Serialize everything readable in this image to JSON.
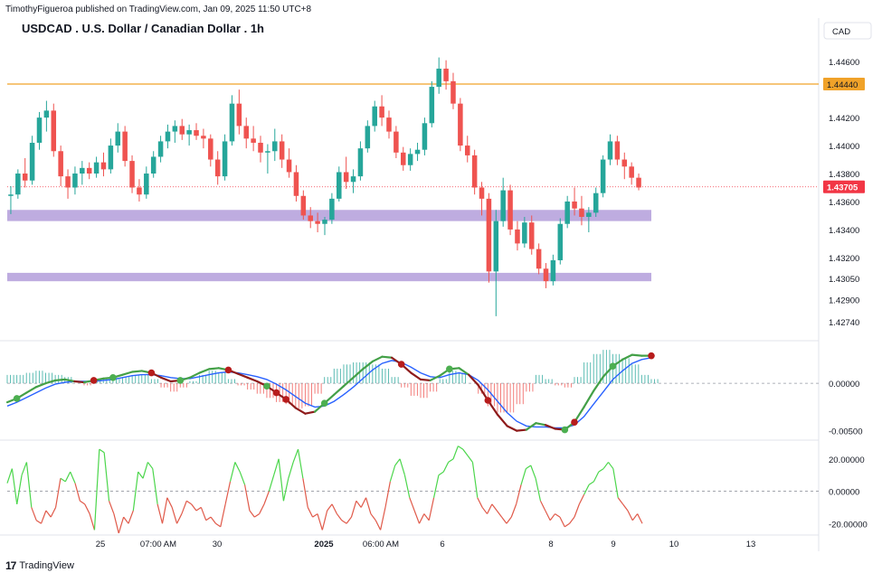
{
  "header": {
    "publisher_line": "TimothyFigueroa published on TradingView.com, Jan 09, 2025 11:50 UTC+8",
    "symbol_title": "USDCAD . U.S. Dollar / Canadian Dollar . 1h",
    "currency_label": "CAD"
  },
  "footer": {
    "logo_text": "TradingView",
    "logo_mark": "17"
  },
  "colors": {
    "up": "#26a69a",
    "down": "#ef5350",
    "up_wick": "#22ab94",
    "down_wick": "#d32f2f",
    "resistance": "#f0a229",
    "zone": "#b39ddb",
    "price_tag": "#f23645",
    "fast_line": "#43a047",
    "fast_line_down": "#8e1b1b",
    "slow_line": "#2962ff",
    "osc_up": "#4cd64c",
    "osc_down": "#e05a4a",
    "grid": "#e0e3eb",
    "axis_text": "#131722"
  },
  "chart_data": [
    {
      "type": "candlestick",
      "title": "USDCAD . U.S. Dollar / Canadian Dollar . 1h",
      "y_axis_ticks": [
        "1.44600",
        "1.44200",
        "1.44000",
        "1.43800",
        "1.43600",
        "1.43400",
        "1.43200",
        "1.43050",
        "1.42900",
        "1.42740"
      ],
      "ylim": [
        1.4265,
        1.4475
      ],
      "x_axis_labels": [
        "25",
        "07:00 AM",
        "30",
        "2025",
        "06:00 AM",
        "6",
        "8",
        "9",
        "10",
        "13"
      ],
      "resistance_level": 1.4444,
      "resistance_label": "1.44440",
      "last_price": 1.43705,
      "last_price_label": "1.43705",
      "support_zones": [
        {
          "from": 1.4346,
          "to": 1.4354
        },
        {
          "from": 1.4303,
          "to": 1.4309
        }
      ],
      "candles_ohlc": [
        [
          1.4364,
          1.4371,
          1.4351,
          1.4365
        ],
        [
          1.4365,
          1.4383,
          1.4362,
          1.438
        ],
        [
          1.438,
          1.4391,
          1.437,
          1.4375
        ],
        [
          1.4375,
          1.4407,
          1.4372,
          1.4402
        ],
        [
          1.4402,
          1.4424,
          1.4397,
          1.442
        ],
        [
          1.442,
          1.4432,
          1.441,
          1.4425
        ],
        [
          1.4425,
          1.443,
          1.4392,
          1.4396
        ],
        [
          1.4396,
          1.44,
          1.4371,
          1.4378
        ],
        [
          1.4378,
          1.4383,
          1.4362,
          1.437
        ],
        [
          1.437,
          1.4385,
          1.4365,
          1.438
        ],
        [
          1.438,
          1.4389,
          1.4372,
          1.4384
        ],
        [
          1.4384,
          1.4388,
          1.4376,
          1.438
        ],
        [
          1.438,
          1.4392,
          1.4377,
          1.4388
        ],
        [
          1.4388,
          1.4395,
          1.4378,
          1.4383
        ],
        [
          1.4383,
          1.4405,
          1.438,
          1.44
        ],
        [
          1.44,
          1.4416,
          1.4395,
          1.441
        ],
        [
          1.441,
          1.4414,
          1.4385,
          1.4389
        ],
        [
          1.4389,
          1.4393,
          1.4366,
          1.437
        ],
        [
          1.437,
          1.4376,
          1.436,
          1.4365
        ],
        [
          1.4365,
          1.4385,
          1.4362,
          1.438
        ],
        [
          1.438,
          1.4396,
          1.4377,
          1.4392
        ],
        [
          1.4392,
          1.4407,
          1.4388,
          1.4403
        ],
        [
          1.4403,
          1.4415,
          1.4398,
          1.441
        ],
        [
          1.441,
          1.4418,
          1.4402,
          1.4414
        ],
        [
          1.4414,
          1.4419,
          1.4404,
          1.4408
        ],
        [
          1.4408,
          1.4415,
          1.44,
          1.4411
        ],
        [
          1.4411,
          1.4416,
          1.4404,
          1.4407
        ],
        [
          1.4407,
          1.4412,
          1.4398,
          1.4405
        ],
        [
          1.4405,
          1.4408,
          1.4385,
          1.439
        ],
        [
          1.439,
          1.4396,
          1.4372,
          1.4378
        ],
        [
          1.4378,
          1.4408,
          1.4375,
          1.4403
        ],
        [
          1.4403,
          1.4436,
          1.44,
          1.443
        ],
        [
          1.443,
          1.444,
          1.4408,
          1.4414
        ],
        [
          1.4414,
          1.442,
          1.4398,
          1.4405
        ],
        [
          1.4405,
          1.4414,
          1.4396,
          1.4402
        ],
        [
          1.4402,
          1.4407,
          1.4388,
          1.4395
        ],
        [
          1.4395,
          1.4401,
          1.438,
          1.4396
        ],
        [
          1.4396,
          1.4412,
          1.4389,
          1.4403
        ],
        [
          1.4403,
          1.4408,
          1.4384,
          1.439
        ],
        [
          1.439,
          1.4398,
          1.4377,
          1.4381
        ],
        [
          1.4381,
          1.4386,
          1.436,
          1.4364
        ],
        [
          1.4364,
          1.4368,
          1.4347,
          1.435
        ],
        [
          1.435,
          1.4356,
          1.4341,
          1.4346
        ],
        [
          1.4346,
          1.4352,
          1.4338,
          1.4344
        ],
        [
          1.4344,
          1.4349,
          1.4336,
          1.4347
        ],
        [
          1.4347,
          1.4366,
          1.4344,
          1.4362
        ],
        [
          1.4362,
          1.4385,
          1.436,
          1.4381
        ],
        [
          1.4381,
          1.4392,
          1.4369,
          1.4374
        ],
        [
          1.4374,
          1.4383,
          1.4366,
          1.4378
        ],
        [
          1.4378,
          1.4403,
          1.4375,
          1.4398
        ],
        [
          1.4398,
          1.4418,
          1.4395,
          1.4414
        ],
        [
          1.4414,
          1.4432,
          1.441,
          1.4428
        ],
        [
          1.4428,
          1.4436,
          1.4414,
          1.442
        ],
        [
          1.442,
          1.4425,
          1.4405,
          1.441
        ],
        [
          1.441,
          1.4414,
          1.4391,
          1.4395
        ],
        [
          1.4395,
          1.4399,
          1.4382,
          1.4386
        ],
        [
          1.4386,
          1.4398,
          1.4382,
          1.4394
        ],
        [
          1.4394,
          1.4402,
          1.4389,
          1.4397
        ],
        [
          1.4397,
          1.442,
          1.4393,
          1.4416
        ],
        [
          1.4416,
          1.4446,
          1.4413,
          1.4442
        ],
        [
          1.4442,
          1.4463,
          1.4437,
          1.4455
        ],
        [
          1.4455,
          1.4461,
          1.444,
          1.4446
        ],
        [
          1.4446,
          1.4452,
          1.4426,
          1.443
        ],
        [
          1.443,
          1.4434,
          1.4396,
          1.44
        ],
        [
          1.44,
          1.4407,
          1.4388,
          1.4393
        ],
        [
          1.4393,
          1.4397,
          1.4365,
          1.437
        ],
        [
          1.437,
          1.4374,
          1.435,
          1.4362
        ],
        [
          1.4362,
          1.4366,
          1.4302,
          1.431
        ],
        [
          1.431,
          1.4354,
          1.4278,
          1.4346
        ],
        [
          1.4346,
          1.4377,
          1.4342,
          1.4368
        ],
        [
          1.4368,
          1.4372,
          1.4336,
          1.434
        ],
        [
          1.434,
          1.4346,
          1.4325,
          1.433
        ],
        [
          1.433,
          1.4349,
          1.4327,
          1.4345
        ],
        [
          1.4345,
          1.435,
          1.4322,
          1.4326
        ],
        [
          1.4326,
          1.433,
          1.4308,
          1.4312
        ],
        [
          1.4312,
          1.4316,
          1.4298,
          1.4303
        ],
        [
          1.4303,
          1.4322,
          1.43,
          1.4318
        ],
        [
          1.4318,
          1.4348,
          1.4315,
          1.4344
        ],
        [
          1.4344,
          1.4364,
          1.4341,
          1.436
        ],
        [
          1.436,
          1.437,
          1.435,
          1.4355
        ],
        [
          1.4355,
          1.4364,
          1.4343,
          1.4349
        ],
        [
          1.4349,
          1.4356,
          1.4338,
          1.4352
        ],
        [
          1.4352,
          1.437,
          1.4349,
          1.4366
        ],
        [
          1.4366,
          1.4393,
          1.4363,
          1.439
        ],
        [
          1.439,
          1.4408,
          1.4386,
          1.4403
        ],
        [
          1.4403,
          1.4407,
          1.4386,
          1.439
        ],
        [
          1.439,
          1.4395,
          1.4376,
          1.4385
        ],
        [
          1.4385,
          1.4388,
          1.4372,
          1.4377
        ],
        [
          1.4377,
          1.438,
          1.4368,
          1.437
        ]
      ]
    },
    {
      "type": "line+histogram",
      "y_axis_ticks": [
        "0.00000",
        "-0.00500"
      ],
      "ylim": [
        -0.0058,
        0.0042
      ],
      "fast_line": [
        -0.002,
        -0.0016,
        -0.001,
        -0.0004,
        0.0,
        0.0003,
        0.0004,
        0.0002,
        0.0001,
        0.0003,
        0.0005,
        0.0006,
        0.0009,
        0.0012,
        0.0013,
        0.0011,
        0.0006,
        0.0002,
        0.0003,
        0.0006,
        0.0011,
        0.0015,
        0.0016,
        0.0014,
        0.001,
        0.0006,
        0.0002,
        -0.0003,
        -0.001,
        -0.0017,
        -0.0026,
        -0.0032,
        -0.003,
        -0.0021,
        -0.0012,
        -0.0003,
        0.0006,
        0.0015,
        0.0023,
        0.0028,
        0.0027,
        0.002,
        0.0011,
        0.0004,
        0.0003,
        0.0008,
        0.0015,
        0.0016,
        0.0009,
        -0.0002,
        -0.0018,
        -0.0033,
        -0.0045,
        -0.005,
        -0.0049,
        -0.0042,
        -0.0044,
        -0.0048,
        -0.0049,
        -0.0041,
        -0.0025,
        -0.0008,
        0.0007,
        0.0018,
        0.0025,
        0.003,
        0.0029,
        0.0029
      ],
      "slow_line": [
        -0.0024,
        -0.002,
        -0.0015,
        -0.001,
        -0.0005,
        -0.0001,
        0.0001,
        0.0002,
        0.0002,
        0.0002,
        0.0003,
        0.0004,
        0.0006,
        0.0008,
        0.0009,
        0.0009,
        0.0008,
        0.0006,
        0.0005,
        0.0005,
        0.0007,
        0.0009,
        0.0011,
        0.0012,
        0.0011,
        0.0009,
        0.0007,
        0.0004,
        -0.0001,
        -0.0007,
        -0.0014,
        -0.0021,
        -0.0025,
        -0.0024,
        -0.0019,
        -0.0012,
        -0.0004,
        0.0005,
        0.0014,
        0.0021,
        0.0024,
        0.0022,
        0.0017,
        0.0011,
        0.0007,
        0.0006,
        0.0009,
        0.0011,
        0.0009,
        0.0003,
        -0.0007,
        -0.0019,
        -0.0031,
        -0.004,
        -0.0045,
        -0.0046,
        -0.0046,
        -0.0047,
        -0.0047,
        -0.0044,
        -0.0035,
        -0.0022,
        -0.0009,
        0.0004,
        0.0013,
        0.0021,
        0.0025,
        0.0027
      ],
      "cross_markers": [
        {
          "i": 1,
          "dir": "up"
        },
        {
          "i": 9,
          "dir": "down"
        },
        {
          "i": 11,
          "dir": "up"
        },
        {
          "i": 15,
          "dir": "down"
        },
        {
          "i": 18,
          "dir": "up"
        },
        {
          "i": 23,
          "dir": "down"
        },
        {
          "i": 27,
          "dir": "up"
        },
        {
          "i": 28,
          "dir": "down"
        },
        {
          "i": 29,
          "dir": "down"
        },
        {
          "i": 33,
          "dir": "up"
        },
        {
          "i": 41,
          "dir": "down"
        },
        {
          "i": 46,
          "dir": "up"
        },
        {
          "i": 50,
          "dir": "down"
        },
        {
          "i": 58,
          "dir": "up"
        },
        {
          "i": 59,
          "dir": "down"
        },
        {
          "i": 63,
          "dir": "up"
        },
        {
          "i": 69,
          "dir": "down"
        }
      ]
    },
    {
      "type": "line",
      "y_axis_ticks": [
        "20.00000",
        "0.00000",
        "-20.00000"
      ],
      "ylim": [
        -26,
        30
      ],
      "values": [
        5,
        14,
        -8,
        10,
        18,
        -10,
        -18,
        -20,
        -12,
        -16,
        -10,
        8,
        6,
        12,
        5,
        -6,
        -8,
        -14,
        -24,
        26,
        24,
        -6,
        -14,
        -26,
        -16,
        -20,
        -12,
        12,
        8,
        18,
        14,
        -8,
        -20,
        -4,
        -10,
        -20,
        -14,
        -6,
        -8,
        -12,
        -10,
        -18,
        -16,
        -20,
        -22,
        -8,
        6,
        18,
        12,
        4,
        -12,
        -16,
        -14,
        -8,
        0,
        10,
        20,
        -6,
        8,
        18,
        26,
        8,
        -10,
        -16,
        -14,
        -24,
        -12,
        -8,
        -14,
        -18,
        -20,
        -16,
        -6,
        -10,
        -4,
        -14,
        -18,
        -24,
        -10,
        6,
        16,
        20,
        10,
        -4,
        -12,
        -20,
        -14,
        -18,
        -4,
        10,
        12,
        18,
        20,
        28,
        26,
        22,
        18,
        -4,
        -10,
        -14,
        -8,
        -12,
        -16,
        -20,
        -16,
        -8,
        4,
        14,
        16,
        8,
        -6,
        -12,
        -18,
        -14,
        -16,
        -22,
        -20,
        -16,
        -8,
        -2,
        4,
        6,
        12,
        14,
        18,
        14,
        -4,
        -8,
        -12,
        -18,
        -14,
        -20
      ]
    }
  ],
  "tradingview": {
    "last_price_tag": "1.43705"
  }
}
